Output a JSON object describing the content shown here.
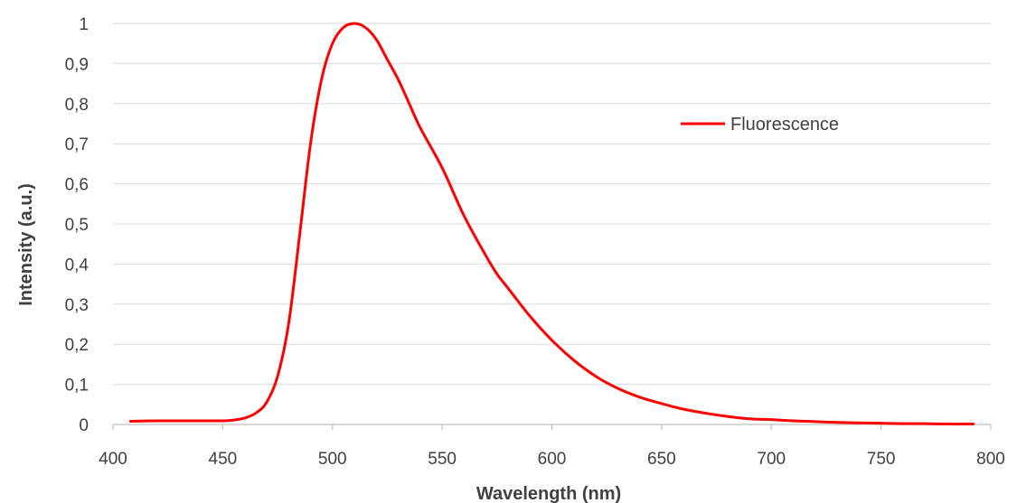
{
  "chart_data": {
    "type": "line",
    "title": "",
    "xlabel": "Wavelength (nm)",
    "ylabel": "Intensity (a.u.)",
    "xlim": [
      400,
      800
    ],
    "ylim": [
      0,
      1
    ],
    "x_ticks": [
      400,
      450,
      500,
      550,
      600,
      650,
      700,
      750,
      800
    ],
    "x_tick_labels": [
      "400",
      "450",
      "500",
      "550",
      "600",
      "650",
      "700",
      "750",
      "800"
    ],
    "y_ticks": [
      0,
      0.1,
      0.2,
      0.3,
      0.4,
      0.5,
      0.6,
      0.7,
      0.8,
      0.9,
      1
    ],
    "y_tick_labels": [
      "0",
      "0,1",
      "0,2",
      "0,3",
      "0,4",
      "0,5",
      "0,6",
      "0,7",
      "0,8",
      "0,9",
      "1"
    ],
    "grid": "horizontal",
    "legend_position": "top-right",
    "series": [
      {
        "name": "Fluorescence",
        "color": "#ff0000",
        "x": [
          408,
          420,
          430,
          440,
          450,
          455,
          460,
          465,
          470,
          475,
          480,
          485,
          490,
          495,
          500,
          505,
          510,
          515,
          520,
          525,
          530,
          535,
          540,
          550,
          560,
          570,
          575,
          580,
          590,
          600,
          610,
          620,
          630,
          640,
          650,
          660,
          670,
          680,
          690,
          700,
          710,
          720,
          730,
          740,
          750,
          760,
          770,
          780,
          792
        ],
        "y": [
          0.008,
          0.009,
          0.009,
          0.009,
          0.009,
          0.011,
          0.016,
          0.028,
          0.055,
          0.12,
          0.25,
          0.47,
          0.7,
          0.86,
          0.95,
          0.99,
          1.0,
          0.99,
          0.96,
          0.91,
          0.86,
          0.8,
          0.74,
          0.64,
          0.52,
          0.42,
          0.375,
          0.34,
          0.27,
          0.21,
          0.16,
          0.12,
          0.09,
          0.068,
          0.052,
          0.038,
          0.028,
          0.02,
          0.014,
          0.012,
          0.009,
          0.007,
          0.005,
          0.004,
          0.003,
          0.002,
          0.002,
          0.001,
          0.001
        ]
      }
    ]
  }
}
